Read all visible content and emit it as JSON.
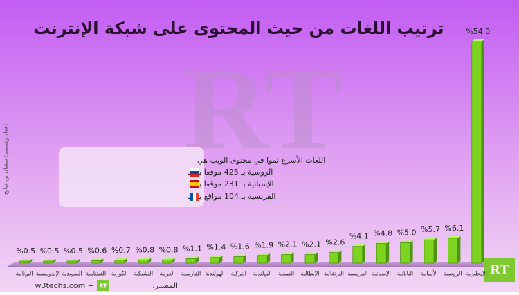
{
  "chart_data": {
    "type": "bar",
    "title": "ترتيب اللغات من حيث المحتوى على شبكة الإنترنت",
    "categories": [
      "اليونانية",
      "الإندونيسية",
      "السويدية",
      "الفيتنامية",
      "الكورية",
      "التشيكية",
      "العربية",
      "الفارسية",
      "الهولندية",
      "التركية",
      "البولندية",
      "الصينية",
      "الإيطالية",
      "البرتغالية",
      "الفرنسية",
      "الإسبانية",
      "اليابانية",
      "الألمانية",
      "الروسية",
      "الإنجليزية"
    ],
    "values": [
      0.5,
      0.5,
      0.5,
      0.6,
      0.7,
      0.8,
      0.8,
      1.1,
      1.4,
      1.6,
      1.9,
      2.1,
      2.1,
      2.6,
      4.1,
      4.8,
      5.0,
      5.7,
      6.1,
      54.0
    ],
    "value_labels": [
      "%0.5",
      "%0.5",
      "%0.5",
      "%0.6",
      "%0.7",
      "%0.8",
      "%0.8",
      "%1.1",
      "%1.4",
      "%1.6",
      "%1.9",
      "%2.1",
      "%2.1",
      "%2.6",
      "%4.1",
      "%4.8",
      "%5.0",
      "%5.7",
      "%6.1",
      "%54.0"
    ],
    "color": "#7ed321",
    "callout": {
      "heading": "اللغات الأسرع نموا في محتوى الويب هي",
      "items": [
        "الروسية بـ 425 موقعا يوميا",
        "الإسبانية بـ 231 موقعا يوميا",
        "الفرنسية بـ 104 مواقع يوميا"
      ]
    },
    "source_label": "المصدر:",
    "source": "w3techs.com +",
    "logo": "RT",
    "credit": "إعداد وتصميم: سفيان بن صالح"
  }
}
